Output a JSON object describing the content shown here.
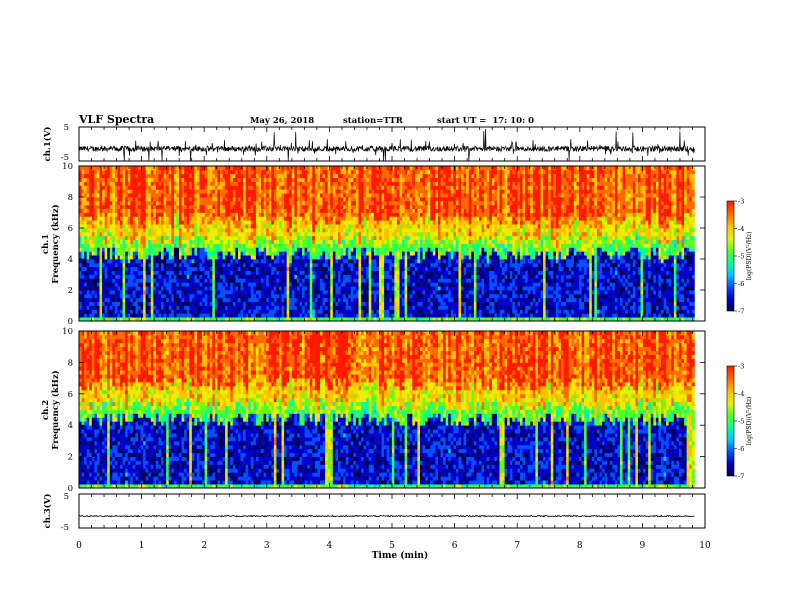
{
  "header": {
    "title": "VLF Spectra",
    "date": "May 26, 2018",
    "station": "station=TTR",
    "start_ut": "start UT =  17: 10: 0"
  },
  "colors": {
    "background": "#ffffff",
    "axis": "#000000",
    "trace": "#000000",
    "colormap": [
      "#000050",
      "#0000c8",
      "#0050ff",
      "#00c8ff",
      "#00ff9a",
      "#5aff20",
      "#e8f000",
      "#ffc000",
      "#ff6a00",
      "#ff1a00"
    ]
  },
  "chart_data": [
    {
      "type": "line",
      "panel": "ch1-waveform",
      "ylabel": "ch.1(V)",
      "ylim": [
        -5,
        5
      ],
      "yticks": [
        "5",
        "-5"
      ],
      "xlim": [
        0,
        10
      ],
      "series": [
        {
          "baseline": -1.4,
          "noise_range": [
            -3.5,
            1.5
          ],
          "spike_range": [
            -5,
            5
          ]
        }
      ]
    },
    {
      "type": "heatmap",
      "panel": "ch1-spectrogram",
      "ylabel_lines": [
        "ch.1",
        "Frequency (kHz)"
      ],
      "ylim": [
        0,
        10
      ],
      "yticks": [
        "0",
        "2",
        "4",
        "6",
        "8",
        "10"
      ],
      "xlim": [
        0,
        10
      ],
      "data_end_min": 9.83,
      "value_range": [
        -7,
        -3
      ],
      "band_edge_khz": 4.3,
      "colorbar": {
        "label": "log(PSD)(V²/Hz)",
        "ticks": [
          "-3",
          "-4",
          "-5",
          "-6",
          "-7"
        ]
      }
    },
    {
      "type": "heatmap",
      "panel": "ch2-spectrogram",
      "ylabel_lines": [
        "ch.2",
        "Frequency (kHz)"
      ],
      "ylim": [
        0,
        10
      ],
      "yticks": [
        "0",
        "2",
        "4",
        "6",
        "8",
        "10"
      ],
      "xlim": [
        0,
        10
      ],
      "data_end_min": 9.83,
      "value_range": [
        -7,
        -3
      ],
      "band_edge_khz": 4.4,
      "colorbar": {
        "label": "log(PSD)(V²/Hz)",
        "ticks": [
          "-3",
          "-4",
          "-5",
          "-6",
          "-7"
        ]
      }
    },
    {
      "type": "line",
      "panel": "ch3-waveform",
      "ylabel": "ch.3(V)",
      "ylim": [
        -5,
        5
      ],
      "yticks": [
        "5",
        "-5"
      ],
      "xlim": [
        0,
        10
      ],
      "xlabel": "Time (min)",
      "xticks": [
        "0",
        "1",
        "2",
        "3",
        "4",
        "5",
        "6",
        "7",
        "8",
        "9",
        "10"
      ],
      "series": [
        {
          "baseline": -1.5,
          "noise_range": [
            -1.7,
            -1.3
          ]
        }
      ]
    }
  ]
}
